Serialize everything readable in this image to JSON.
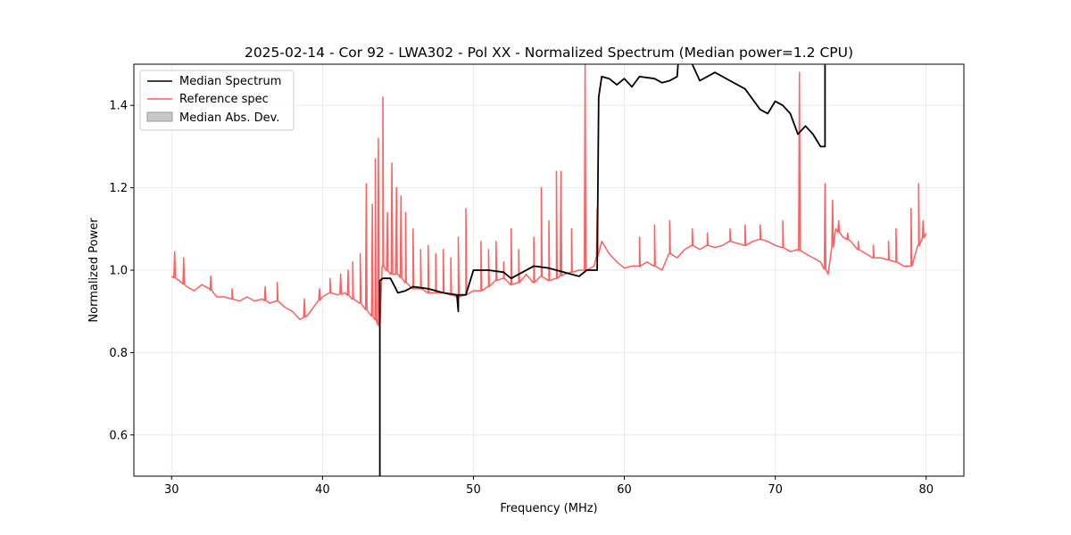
{
  "chart_data": {
    "type": "line",
    "title": "2025-02-14 - Cor 92 - LWA302 - Pol XX - Normalized Spectrum (Median power=1.2 CPU)",
    "xlabel": "Frequency (MHz)",
    "ylabel": "Normalized Power",
    "xlim": [
      27.5,
      82.5
    ],
    "ylim": [
      0.5,
      1.5
    ],
    "xticks": [
      30,
      40,
      50,
      60,
      70,
      80
    ],
    "yticks": [
      0.6,
      0.8,
      1.0,
      1.2,
      1.4
    ],
    "xtick_labels": [
      "30",
      "40",
      "50",
      "60",
      "70",
      "80"
    ],
    "ytick_labels": [
      "0.6",
      "0.8",
      "1.0",
      "1.2",
      "1.4"
    ],
    "grid": true,
    "legend_position": "upper-left",
    "legend": [
      "Median Spectrum",
      "Reference spec",
      "Median Abs. Dev."
    ],
    "colors": {
      "median": "#000000",
      "reference": "#ff5f5f",
      "mad": "#c8c8c8"
    },
    "series": [
      {
        "name": "Median Spectrum",
        "x": [
          43.8,
          43.8,
          43.8,
          44.0,
          44.5,
          45.0,
          45.5,
          46.0,
          47.0,
          48.0,
          48.9,
          49.0,
          49.0,
          49.5,
          50.0,
          51.0,
          52.0,
          52.5,
          53.0,
          54.0,
          55.0,
          56.0,
          57.0,
          57.5,
          58.0,
          58.2,
          58.3,
          58.5,
          59.0,
          59.5,
          60.0,
          60.5,
          61.0,
          62.0,
          62.5,
          63.0,
          63.5,
          63.6,
          64.5,
          65.0,
          66.0,
          67.0,
          68.0,
          69.0,
          69.5,
          70.0,
          70.5,
          71.0,
          71.5,
          72.0,
          72.5,
          73.0,
          73.3,
          73.3,
          73.3
        ],
        "values": [
          0.45,
          0.6,
          0.975,
          0.98,
          0.98,
          0.945,
          0.95,
          0.96,
          0.955,
          0.945,
          0.94,
          0.9,
          0.94,
          0.94,
          1.0,
          1.0,
          0.995,
          0.98,
          0.99,
          1.01,
          1.005,
          0.995,
          0.985,
          1.0,
          1.0,
          1.0,
          1.42,
          1.47,
          1.465,
          1.45,
          1.465,
          1.445,
          1.47,
          1.465,
          1.455,
          1.46,
          1.47,
          1.52,
          1.5,
          1.46,
          1.48,
          1.46,
          1.44,
          1.39,
          1.38,
          1.41,
          1.4,
          1.38,
          1.33,
          1.35,
          1.33,
          1.3,
          1.3,
          1.45,
          1.55
        ]
      },
      {
        "name": "Reference spec",
        "x": [
          30.0,
          30.5,
          31.0,
          31.5,
          32.0,
          32.5,
          33.0,
          33.5,
          34.0,
          34.5,
          35.0,
          35.5,
          36.0,
          36.5,
          37.0,
          37.5,
          38.0,
          38.5,
          39.0,
          39.5,
          40.0,
          40.5,
          41.0,
          41.5,
          42.0,
          42.5,
          43.0,
          43.5,
          43.8,
          44.0,
          44.5,
          45.0,
          45.5,
          46.0,
          46.5,
          47.0,
          47.5,
          48.0,
          48.5,
          49.0,
          49.5,
          50.0,
          50.5,
          51.0,
          51.5,
          52.0,
          52.5,
          53.0,
          53.5,
          54.0,
          54.5,
          55.0,
          55.5,
          56.0,
          56.5,
          57.0,
          57.5,
          58.0,
          58.5,
          59.0,
          59.5,
          60.0,
          60.5,
          61.0,
          61.5,
          62.0,
          62.5,
          63.0,
          63.5,
          64.0,
          64.5,
          65.0,
          65.5,
          66.0,
          66.5,
          67.0,
          67.5,
          68.0,
          68.5,
          69.0,
          69.5,
          70.0,
          70.5,
          71.0,
          71.5,
          72.0,
          72.5,
          73.0,
          73.5,
          74.0,
          74.5,
          75.0,
          75.5,
          76.0,
          76.5,
          77.0,
          77.5,
          78.0,
          78.5,
          79.0,
          79.5,
          80.0
        ],
        "values": [
          0.985,
          0.975,
          0.96,
          0.95,
          0.965,
          0.955,
          0.935,
          0.935,
          0.93,
          0.925,
          0.935,
          0.925,
          0.93,
          0.92,
          0.925,
          0.91,
          0.9,
          0.88,
          0.89,
          0.915,
          0.935,
          0.945,
          0.94,
          0.945,
          0.93,
          0.92,
          0.9,
          0.88,
          0.86,
          1.01,
          0.99,
          0.99,
          0.97,
          0.955,
          0.955,
          0.945,
          0.945,
          0.945,
          0.94,
          0.935,
          0.94,
          0.95,
          0.95,
          0.96,
          0.975,
          0.98,
          0.965,
          0.97,
          0.99,
          0.97,
          0.985,
          0.975,
          0.98,
          0.99,
          0.995,
          1.0,
          1.0,
          1.01,
          1.07,
          1.04,
          1.02,
          1.005,
          1.01,
          1.01,
          1.02,
          1.01,
          1.0,
          1.04,
          1.03,
          1.05,
          1.06,
          1.05,
          1.06,
          1.055,
          1.06,
          1.07,
          1.065,
          1.06,
          1.07,
          1.075,
          1.07,
          1.06,
          1.055,
          1.045,
          1.05,
          1.04,
          1.03,
          1.02,
          0.99,
          1.1,
          1.08,
          1.07,
          1.05,
          1.04,
          1.03,
          1.03,
          1.025,
          1.02,
          1.01,
          1.01,
          1.06,
          1.09
        ]
      }
    ],
    "reference_spikes": [
      {
        "x": 30.2,
        "peak": 1.045
      },
      {
        "x": 30.8,
        "peak": 1.03
      },
      {
        "x": 32.6,
        "peak": 0.985
      },
      {
        "x": 34.0,
        "peak": 0.955
      },
      {
        "x": 36.2,
        "peak": 0.96
      },
      {
        "x": 37.0,
        "peak": 0.97
      },
      {
        "x": 38.8,
        "peak": 0.93
      },
      {
        "x": 39.8,
        "peak": 0.955
      },
      {
        "x": 40.5,
        "peak": 0.98
      },
      {
        "x": 41.2,
        "peak": 0.99
      },
      {
        "x": 41.7,
        "peak": 1.0
      },
      {
        "x": 42.0,
        "peak": 1.02
      },
      {
        "x": 42.5,
        "peak": 1.04
      },
      {
        "x": 42.9,
        "peak": 1.21
      },
      {
        "x": 43.3,
        "peak": 1.16
      },
      {
        "x": 43.5,
        "peak": 1.27
      },
      {
        "x": 43.7,
        "peak": 1.32
      },
      {
        "x": 44.0,
        "peak": 1.42
      },
      {
        "x": 44.3,
        "peak": 1.14
      },
      {
        "x": 44.6,
        "peak": 1.26
      },
      {
        "x": 44.9,
        "peak": 1.2
      },
      {
        "x": 45.2,
        "peak": 1.18
      },
      {
        "x": 45.5,
        "peak": 1.14
      },
      {
        "x": 46.0,
        "peak": 1.1
      },
      {
        "x": 46.5,
        "peak": 1.05
      },
      {
        "x": 47.0,
        "peak": 1.06
      },
      {
        "x": 47.5,
        "peak": 1.04
      },
      {
        "x": 48.0,
        "peak": 1.05
      },
      {
        "x": 48.5,
        "peak": 1.03
      },
      {
        "x": 49.0,
        "peak": 1.08
      },
      {
        "x": 49.5,
        "peak": 1.15
      },
      {
        "x": 50.5,
        "peak": 1.07
      },
      {
        "x": 51.0,
        "peak": 1.05
      },
      {
        "x": 51.5,
        "peak": 1.07
      },
      {
        "x": 52.0,
        "peak": 1.02
      },
      {
        "x": 52.5,
        "peak": 1.1
      },
      {
        "x": 53.0,
        "peak": 1.05
      },
      {
        "x": 54.0,
        "peak": 1.08
      },
      {
        "x": 54.5,
        "peak": 1.2
      },
      {
        "x": 55.0,
        "peak": 1.12
      },
      {
        "x": 55.5,
        "peak": 1.24
      },
      {
        "x": 55.8,
        "peak": 1.24
      },
      {
        "x": 56.5,
        "peak": 1.1
      },
      {
        "x": 57.4,
        "peak": 1.5
      },
      {
        "x": 58.2,
        "peak": 1.15
      },
      {
        "x": 61.0,
        "peak": 1.08
      },
      {
        "x": 62.0,
        "peak": 1.11
      },
      {
        "x": 63.0,
        "peak": 1.12
      },
      {
        "x": 64.5,
        "peak": 1.1
      },
      {
        "x": 65.5,
        "peak": 1.09
      },
      {
        "x": 67.0,
        "peak": 1.1
      },
      {
        "x": 68.0,
        "peak": 1.11
      },
      {
        "x": 69.0,
        "peak": 1.11
      },
      {
        "x": 70.5,
        "peak": 1.12
      },
      {
        "x": 71.6,
        "peak": 1.48
      },
      {
        "x": 73.3,
        "peak": 1.21
      },
      {
        "x": 73.8,
        "peak": 1.17
      },
      {
        "x": 74.2,
        "peak": 1.12
      },
      {
        "x": 74.8,
        "peak": 1.09
      },
      {
        "x": 75.5,
        "peak": 1.07
      },
      {
        "x": 76.5,
        "peak": 1.06
      },
      {
        "x": 77.5,
        "peak": 1.07
      },
      {
        "x": 78.0,
        "peak": 1.1
      },
      {
        "x": 79.0,
        "peak": 1.15
      },
      {
        "x": 79.5,
        "peak": 1.21
      },
      {
        "x": 79.8,
        "peak": 1.12
      }
    ]
  }
}
